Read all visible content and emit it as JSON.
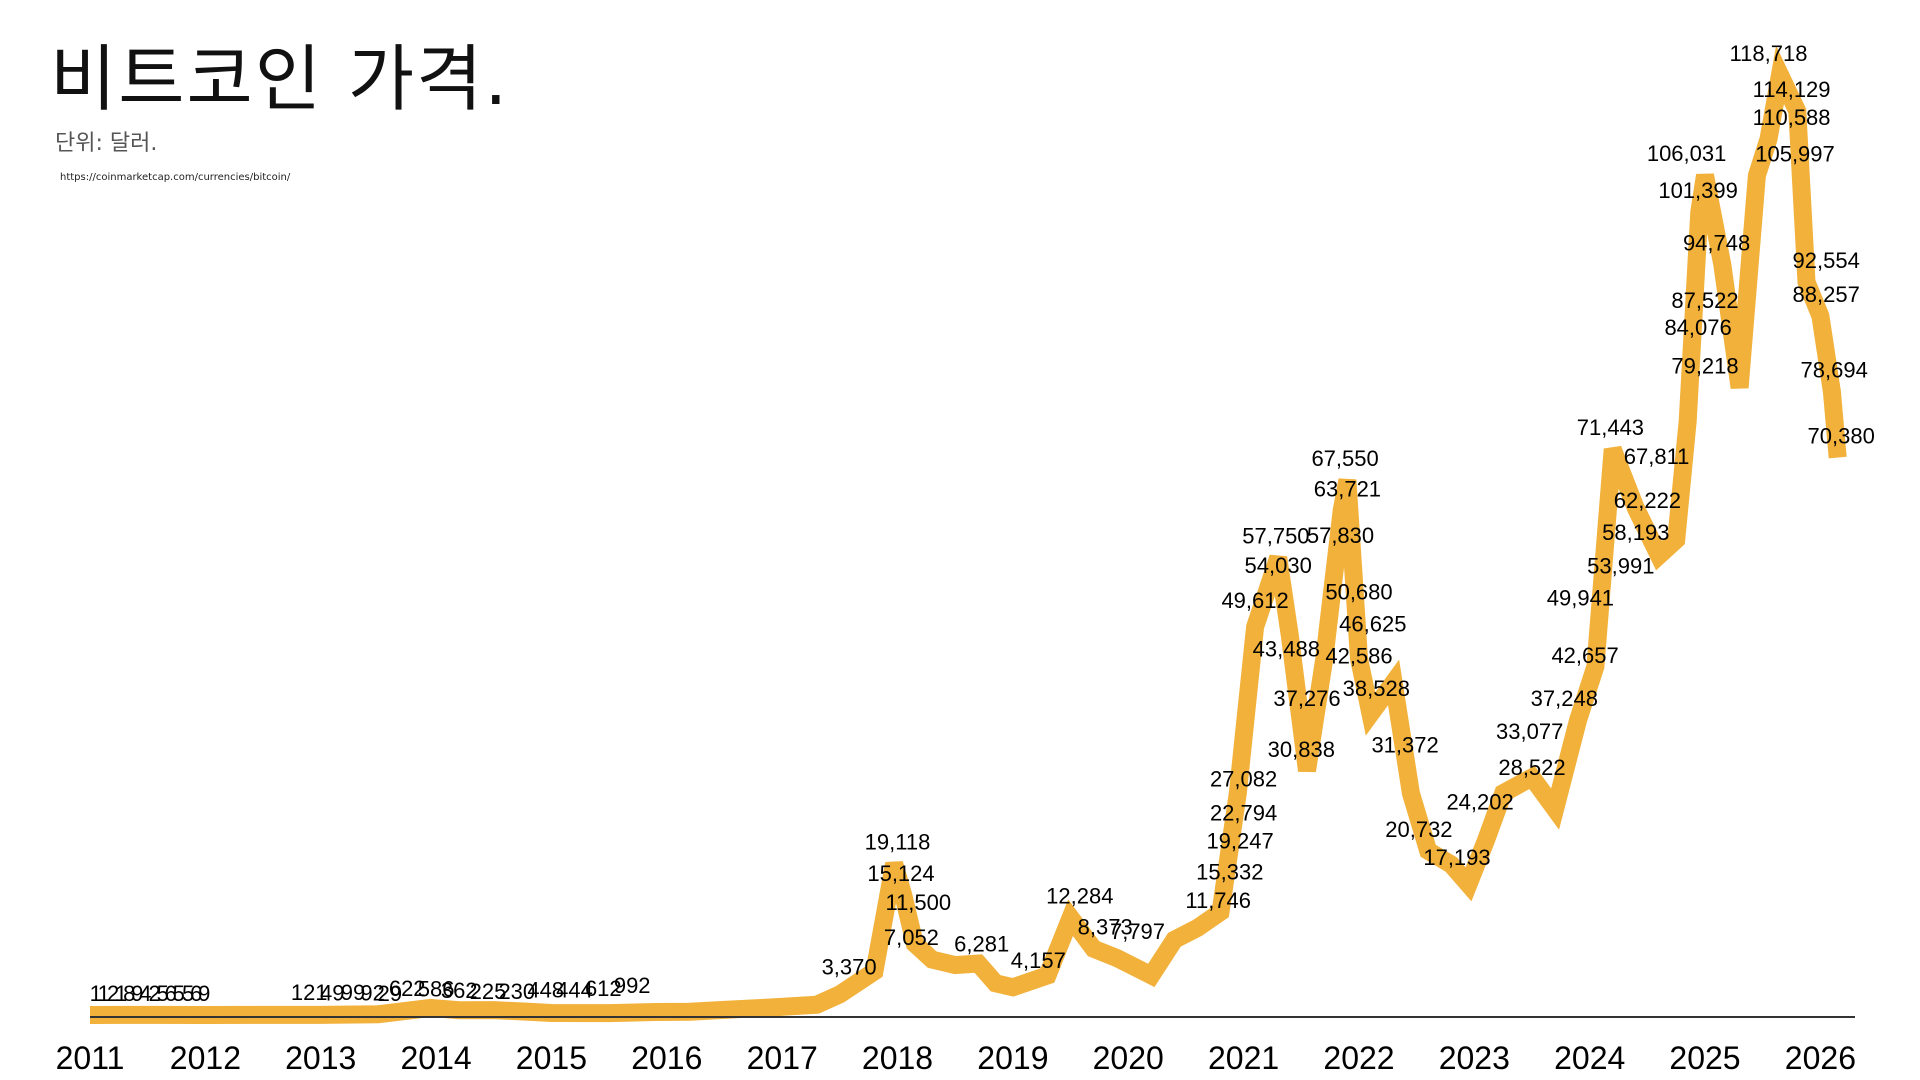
{
  "title": "비트코인 가격.",
  "subtitle": "단위: 달러.",
  "source": "https://coinmarketcap.com/currencies/bitcoin/",
  "chart_data": {
    "type": "line",
    "title": "비트코인 가격.",
    "ylabel": "단위: 달러.",
    "xlabel": "",
    "line_color": "#F2B13A",
    "axis_color": "#333333",
    "xlim": [
      2011,
      2026.3
    ],
    "ylim": [
      0,
      125000
    ],
    "year_ticks": [
      "2011",
      "2012",
      "2013",
      "2014",
      "2015",
      "2016",
      "2017",
      "2018",
      "2019",
      "2020",
      "2021",
      "2022",
      "2023",
      "2024",
      "2025",
      "2026"
    ],
    "points": [
      [
        2011.0,
        1
      ],
      [
        2011.5,
        12
      ],
      [
        2012.0,
        5
      ],
      [
        2012.5,
        7
      ],
      [
        2013.0,
        14
      ],
      [
        2013.5,
        100
      ],
      [
        2013.95,
        900
      ],
      [
        2014.2,
        600
      ],
      [
        2014.5,
        620
      ],
      [
        2014.8,
        400
      ],
      [
        2015.0,
        250
      ],
      [
        2015.5,
        240
      ],
      [
        2015.9,
        380
      ],
      [
        2016.2,
        420
      ],
      [
        2016.5,
        650
      ],
      [
        2016.9,
        950
      ],
      [
        2017.3,
        1300
      ],
      [
        2017.5,
        2600
      ],
      [
        2017.8,
        5500
      ],
      [
        2017.97,
        19118
      ],
      [
        2018.05,
        15124
      ],
      [
        2018.15,
        9000
      ],
      [
        2018.3,
        7000
      ],
      [
        2018.5,
        6300
      ],
      [
        2018.7,
        6500
      ],
      [
        2018.85,
        4000
      ],
      [
        2019.0,
        3500
      ],
      [
        2019.3,
        5000
      ],
      [
        2019.5,
        12284
      ],
      [
        2019.7,
        8373
      ],
      [
        2019.9,
        7200
      ],
      [
        2020.2,
        5000
      ],
      [
        2020.4,
        9500
      ],
      [
        2020.6,
        11000
      ],
      [
        2020.8,
        13000
      ],
      [
        2020.95,
        28000
      ],
      [
        2021.1,
        49000
      ],
      [
        2021.3,
        57750
      ],
      [
        2021.4,
        48000
      ],
      [
        2021.55,
        30838
      ],
      [
        2021.7,
        45000
      ],
      [
        2021.85,
        63721
      ],
      [
        2021.9,
        67550
      ],
      [
        2022.0,
        45000
      ],
      [
        2022.1,
        38000
      ],
      [
        2022.3,
        42000
      ],
      [
        2022.45,
        28000
      ],
      [
        2022.6,
        20732
      ],
      [
        2022.8,
        19000
      ],
      [
        2022.95,
        16500
      ],
      [
        2023.1,
        22000
      ],
      [
        2023.25,
        28000
      ],
      [
        2023.5,
        30000
      ],
      [
        2023.7,
        26000
      ],
      [
        2023.9,
        37248
      ],
      [
        2024.05,
        44000
      ],
      [
        2024.2,
        71443
      ],
      [
        2024.4,
        64000
      ],
      [
        2024.6,
        58000
      ],
      [
        2024.75,
        60000
      ],
      [
        2024.85,
        75000
      ],
      [
        2024.95,
        101399
      ],
      [
        2025.0,
        106031
      ],
      [
        2025.15,
        94748
      ],
      [
        2025.3,
        79218
      ],
      [
        2025.45,
        105997
      ],
      [
        2025.55,
        110588
      ],
      [
        2025.65,
        118718
      ],
      [
        2025.8,
        114129
      ],
      [
        2025.88,
        92554
      ],
      [
        2026.0,
        88257
      ],
      [
        2026.1,
        78694
      ],
      [
        2026.15,
        70380
      ]
    ],
    "data_labels": [
      {
        "x": 2011.05,
        "y": 1,
        "text": "1"
      },
      {
        "x": 2011.12,
        "y": 1,
        "text": "1"
      },
      {
        "x": 2011.2,
        "y": 2,
        "text": "2"
      },
      {
        "x": 2011.27,
        "y": 1,
        "text": "1"
      },
      {
        "x": 2011.34,
        "y": 8,
        "text": "8"
      },
      {
        "x": 2011.41,
        "y": 9,
        "text": "9"
      },
      {
        "x": 2011.48,
        "y": 4,
        "text": "4"
      },
      {
        "x": 2011.56,
        "y": 2,
        "text": "2"
      },
      {
        "x": 2011.63,
        "y": 5,
        "text": "5"
      },
      {
        "x": 2011.7,
        "y": 6,
        "text": "6"
      },
      {
        "x": 2011.77,
        "y": 5,
        "text": "5"
      },
      {
        "x": 2011.85,
        "y": 5,
        "text": "5"
      },
      {
        "x": 2011.92,
        "y": 6,
        "text": "6"
      },
      {
        "x": 2011.99,
        "y": 9,
        "text": "9"
      },
      {
        "x": 2012.9,
        "y": 121,
        "text": "121"
      },
      {
        "x": 2013.1,
        "y": 49,
        "text": "49"
      },
      {
        "x": 2013.28,
        "y": 99,
        "text": "99"
      },
      {
        "x": 2013.45,
        "y": 92,
        "text": "92"
      },
      {
        "x": 2013.6,
        "y": 29,
        "text": "29"
      },
      {
        "x": 2013.75,
        "y": 622,
        "text": "622"
      },
      {
        "x": 2014.0,
        "y": 586,
        "text": "586"
      },
      {
        "x": 2014.2,
        "y": 362,
        "text": "362"
      },
      {
        "x": 2014.45,
        "y": 225,
        "text": "225"
      },
      {
        "x": 2014.7,
        "y": 230,
        "text": "230"
      },
      {
        "x": 2014.95,
        "y": 448,
        "text": "448"
      },
      {
        "x": 2015.2,
        "y": 444,
        "text": "444"
      },
      {
        "x": 2015.45,
        "y": 612,
        "text": "612"
      },
      {
        "x": 2015.7,
        "y": 992,
        "text": "992"
      },
      {
        "x": 2017.58,
        "y": 3370,
        "text": "3,370"
      },
      {
        "x": 2018.0,
        "y": 19118,
        "text": "19,118"
      },
      {
        "x": 2018.03,
        "y": 15124,
        "text": "15,124"
      },
      {
        "x": 2018.18,
        "y": 11500,
        "text": "11,500"
      },
      {
        "x": 2018.12,
        "y": 7052,
        "text": "7,052"
      },
      {
        "x": 2018.73,
        "y": 6281,
        "text": "6,281"
      },
      {
        "x": 2019.22,
        "y": 4157,
        "text": "4,157"
      },
      {
        "x": 2019.58,
        "y": 12284,
        "text": "12,284"
      },
      {
        "x": 2019.8,
        "y": 8373,
        "text": "8,373"
      },
      {
        "x": 2020.08,
        "y": 7797,
        "text": "7,797"
      },
      {
        "x": 2020.78,
        "y": 11746,
        "text": "11,746"
      },
      {
        "x": 2020.88,
        "y": 15332,
        "text": "15,332"
      },
      {
        "x": 2020.97,
        "y": 19247,
        "text": "19,247"
      },
      {
        "x": 2021.0,
        "y": 22794,
        "text": "22,794"
      },
      {
        "x": 2021.0,
        "y": 27082,
        "text": "27,082"
      },
      {
        "x": 2021.1,
        "y": 49612,
        "text": "49,612"
      },
      {
        "x": 2021.28,
        "y": 57750,
        "text": "57,750"
      },
      {
        "x": 2021.3,
        "y": 54030,
        "text": "54,030"
      },
      {
        "x": 2021.37,
        "y": 43488,
        "text": "43,488"
      },
      {
        "x": 2021.55,
        "y": 37276,
        "text": "37,276"
      },
      {
        "x": 2021.5,
        "y": 30838,
        "text": "30,838"
      },
      {
        "x": 2021.84,
        "y": 57830,
        "text": "57,830"
      },
      {
        "x": 2021.88,
        "y": 67550,
        "text": "67,550"
      },
      {
        "x": 2021.9,
        "y": 63721,
        "text": "63,721"
      },
      {
        "x": 2022.0,
        "y": 50680,
        "text": "50,680"
      },
      {
        "x": 2022.12,
        "y": 46625,
        "text": "46,625"
      },
      {
        "x": 2022.0,
        "y": 42586,
        "text": "42,586"
      },
      {
        "x": 2022.15,
        "y": 38528,
        "text": "38,528"
      },
      {
        "x": 2022.4,
        "y": 31372,
        "text": "31,372"
      },
      {
        "x": 2022.52,
        "y": 20732,
        "text": "20,732"
      },
      {
        "x": 2022.85,
        "y": 17193,
        "text": "17,193"
      },
      {
        "x": 2023.05,
        "y": 24202,
        "text": "24,202"
      },
      {
        "x": 2023.5,
        "y": 28522,
        "text": "28,522"
      },
      {
        "x": 2023.48,
        "y": 33077,
        "text": "33,077"
      },
      {
        "x": 2023.78,
        "y": 37248,
        "text": "37,248"
      },
      {
        "x": 2023.96,
        "y": 42657,
        "text": "42,657"
      },
      {
        "x": 2023.92,
        "y": 49941,
        "text": "49,941"
      },
      {
        "x": 2024.18,
        "y": 71443,
        "text": "71,443"
      },
      {
        "x": 2024.58,
        "y": 67811,
        "text": "67,811"
      },
      {
        "x": 2024.5,
        "y": 62222,
        "text": "62,222"
      },
      {
        "x": 2024.4,
        "y": 58193,
        "text": "58,193"
      },
      {
        "x": 2024.27,
        "y": 53991,
        "text": "53,991"
      },
      {
        "x": 2024.84,
        "y": 106031,
        "text": "106,031"
      },
      {
        "x": 2024.94,
        "y": 101399,
        "text": "101,399"
      },
      {
        "x": 2025.1,
        "y": 94748,
        "text": "94,748"
      },
      {
        "x": 2025.0,
        "y": 87522,
        "text": "87,522"
      },
      {
        "x": 2024.94,
        "y": 84076,
        "text": "84,076"
      },
      {
        "x": 2025.0,
        "y": 79218,
        "text": "79,218"
      },
      {
        "x": 2025.55,
        "y": 118718,
        "text": "118,718"
      },
      {
        "x": 2025.75,
        "y": 114129,
        "text": "114,129"
      },
      {
        "x": 2025.75,
        "y": 110588,
        "text": "110,588"
      },
      {
        "x": 2025.78,
        "y": 105997,
        "text": "105,997"
      },
      {
        "x": 2026.05,
        "y": 92554,
        "text": "92,554"
      },
      {
        "x": 2026.05,
        "y": 88257,
        "text": "88,257"
      },
      {
        "x": 2026.12,
        "y": 78694,
        "text": "78,694"
      },
      {
        "x": 2026.18,
        "y": 70380,
        "text": "70,380"
      }
    ]
  }
}
